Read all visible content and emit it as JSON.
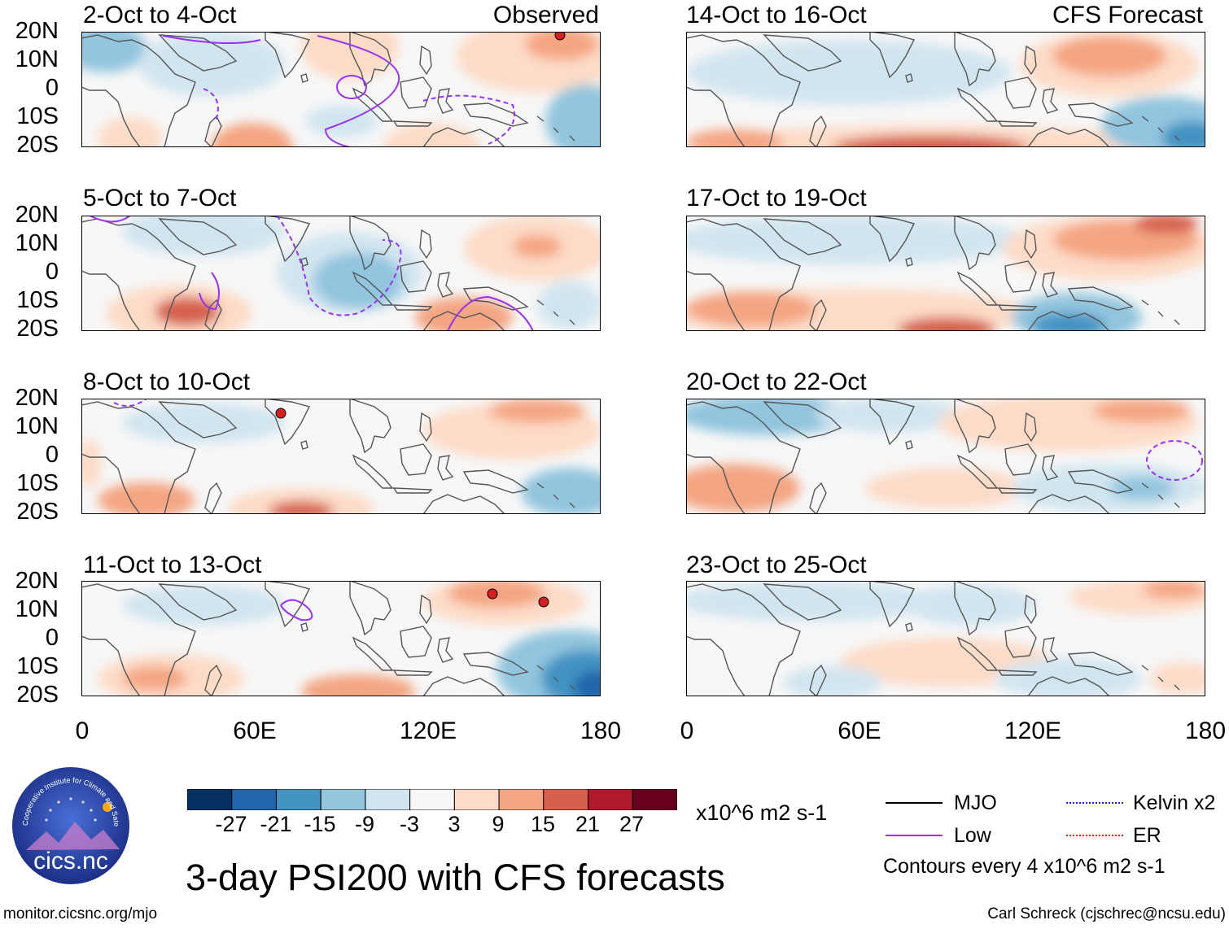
{
  "titles": {
    "left_tag": "Observed",
    "right_tag": "CFS Forecast"
  },
  "panels_left": [
    {
      "title": "2-Oct to 4-Oct"
    },
    {
      "title": "5-Oct to 7-Oct"
    },
    {
      "title": "8-Oct to 10-Oct"
    },
    {
      "title": "11-Oct to 13-Oct"
    }
  ],
  "panels_right": [
    {
      "title": "14-Oct to 16-Oct"
    },
    {
      "title": "17-Oct to 19-Oct"
    },
    {
      "title": "20-Oct to 22-Oct"
    },
    {
      "title": "23-Oct to 25-Oct"
    }
  ],
  "axes": {
    "lat": [
      "20N",
      "10N",
      "0",
      "10S",
      "20S"
    ],
    "lon": [
      "0",
      "60E",
      "120E",
      "180"
    ]
  },
  "colorbar": {
    "colors": [
      "#053061",
      "#2166ac",
      "#4393c3",
      "#92c5de",
      "#d1e5f0",
      "#f7f7f7",
      "#fddbc7",
      "#f4a582",
      "#d6604d",
      "#b2182b",
      "#67001f"
    ],
    "labels": [
      "-27",
      "-21",
      "-15",
      "-9",
      "-3",
      "3",
      "9",
      "15",
      "21",
      "27"
    ],
    "units": "x10^6 m2 s-1"
  },
  "legend": {
    "items": [
      {
        "label": "MJO",
        "color": "#000000",
        "style": "solid"
      },
      {
        "label": "Kelvin x2",
        "color": "#1a1aff",
        "style": "dashed"
      },
      {
        "label": "Low",
        "color": "#9933ee",
        "style": "solid"
      },
      {
        "label": "ER",
        "color": "#ff0000",
        "style": "solid"
      }
    ],
    "contour_note": "Contours every 4 x10^6 m2 s-1"
  },
  "main_title": "3-day PSI200 with CFS forecasts",
  "logo_text": "cics.nc",
  "logo_arc": "Cooperative Institute for Climate and Satellites",
  "footer": {
    "left": "monitor.cicsnc.org/mjo",
    "right": "Carl Schreck (cjschrec@ncsu.edu)"
  }
}
